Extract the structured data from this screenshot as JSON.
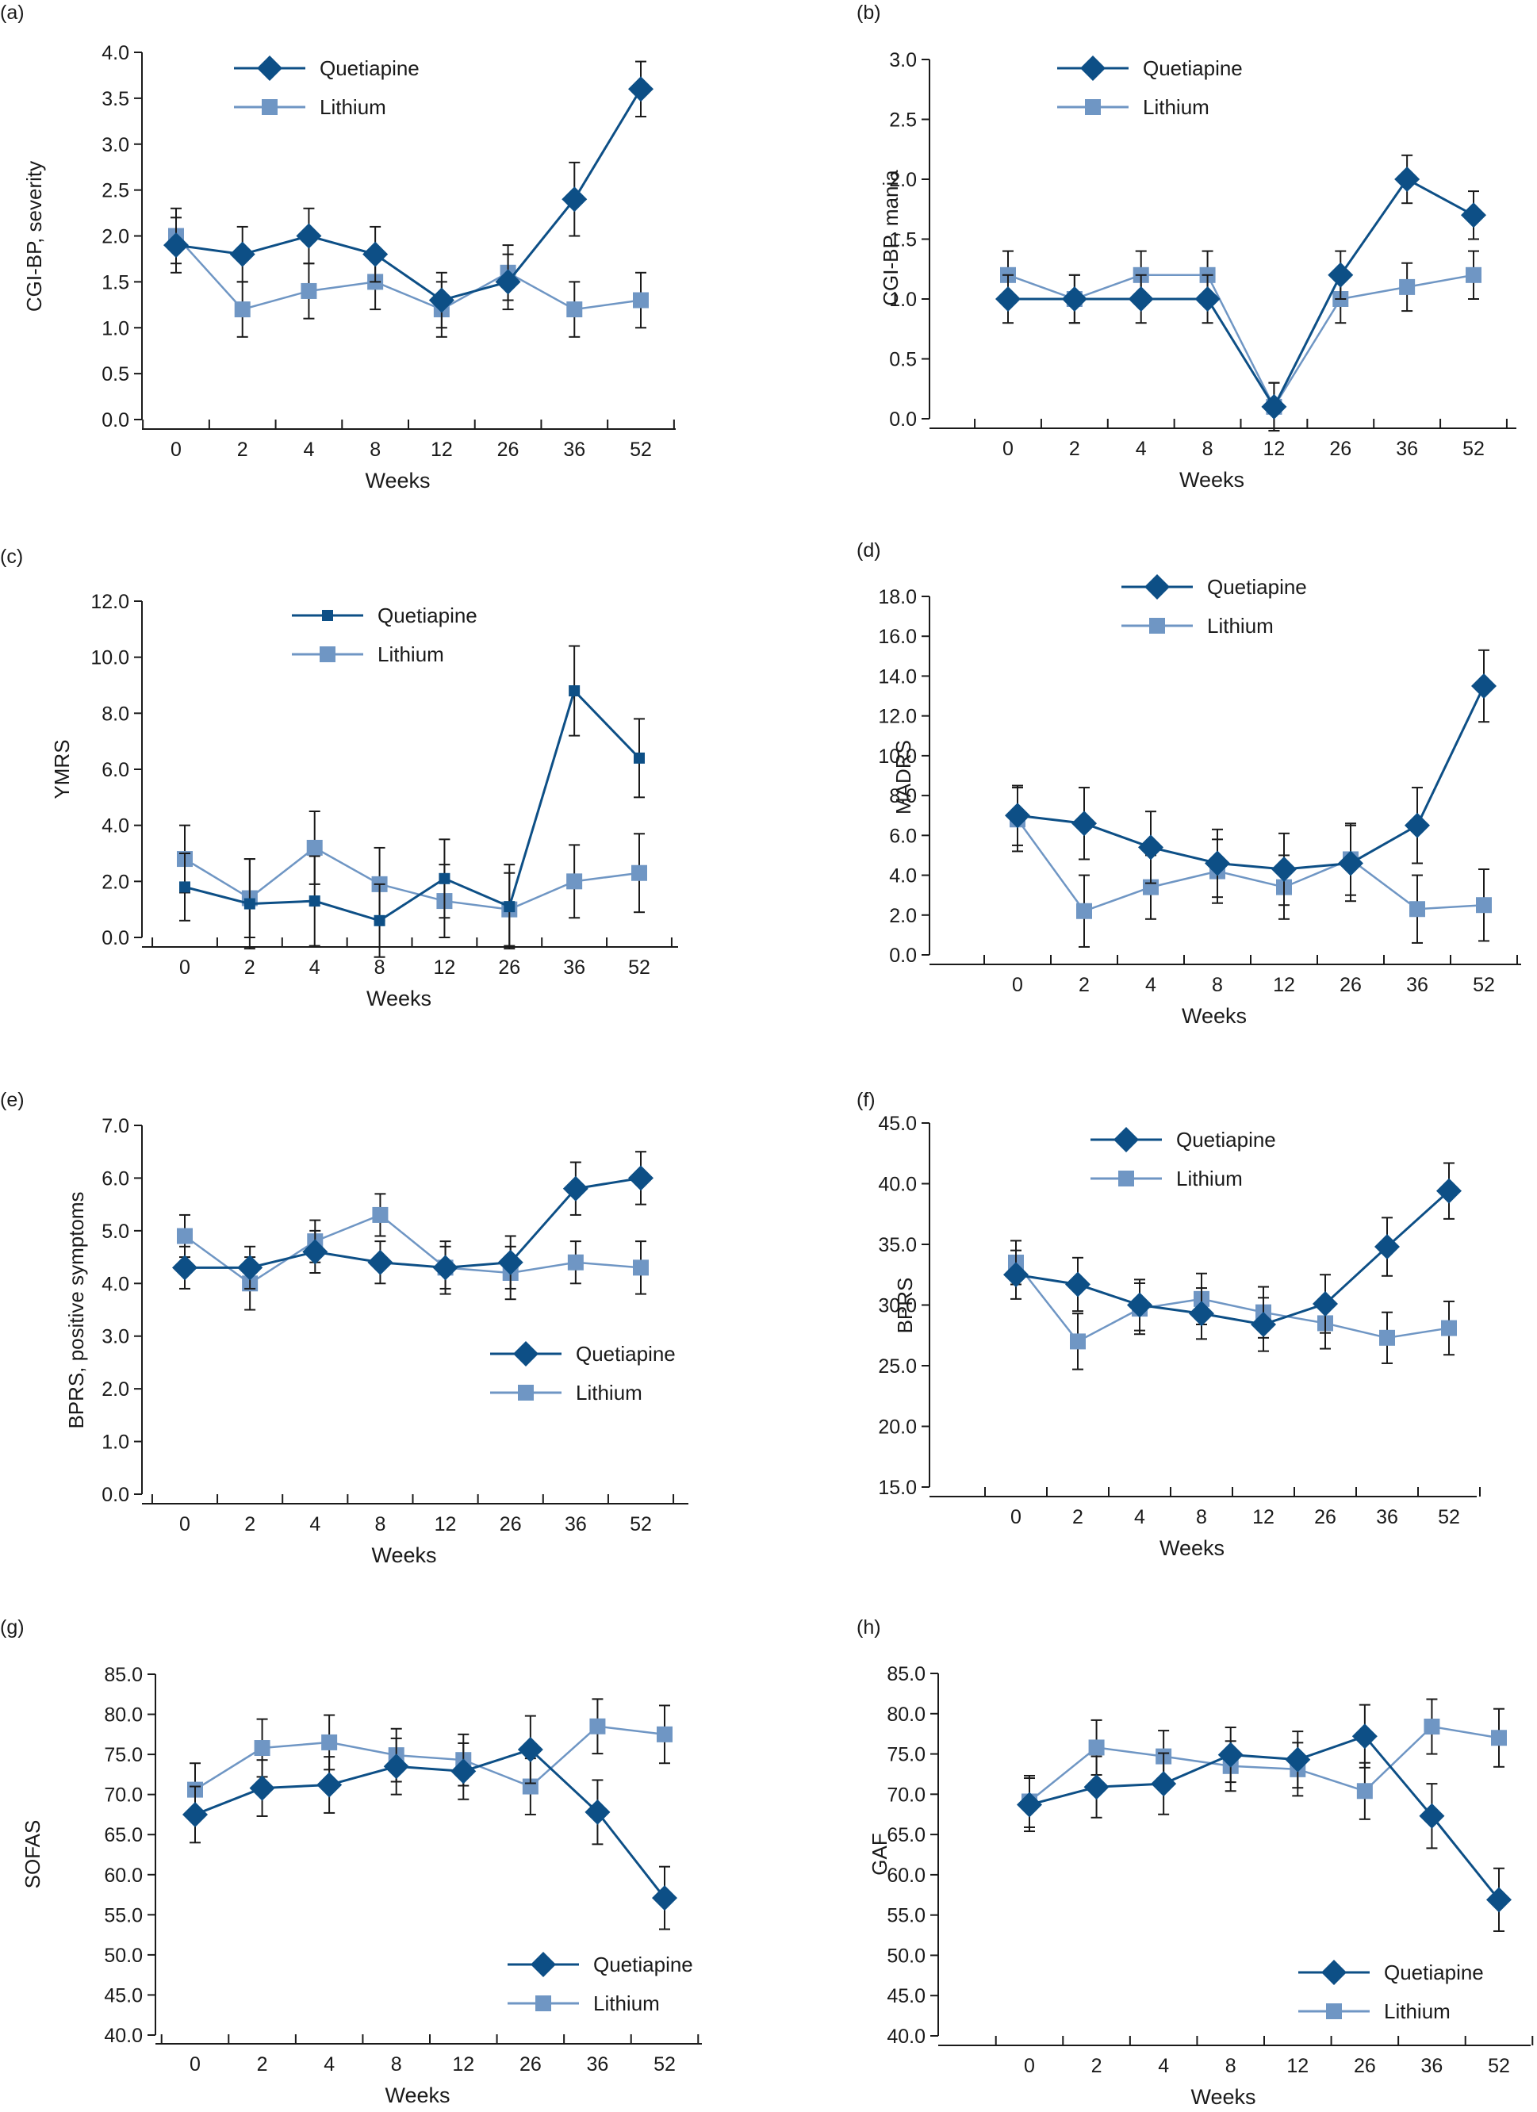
{
  "colors": {
    "quetiapine": "#0d4f86",
    "lithium": "#6f96c4",
    "axis": "#1a1a1a",
    "error_bar": "#1a1a1a"
  },
  "chart_data": [
    {
      "panel_label": "(a)",
      "type": "line",
      "xlabel": "Weeks",
      "ylabel": "CGI-BP, severity",
      "categories": [
        "0",
        "2",
        "4",
        "8",
        "12",
        "26",
        "36",
        "52"
      ],
      "ylim": [
        0,
        4
      ],
      "yticks": [
        "0.0",
        "0.5",
        "1.0",
        "1.5",
        "2.0",
        "2.5",
        "3.0",
        "3.5",
        "4.0"
      ],
      "legend_position": "top-left",
      "quetiapine_marker": "diamond",
      "series": [
        {
          "name": "Quetiapine",
          "values": [
            1.9,
            1.8,
            2.0,
            1.8,
            1.3,
            1.5,
            2.4,
            3.6
          ],
          "errors": [
            0.3,
            0.3,
            0.3,
            0.3,
            0.3,
            0.3,
            0.4,
            0.3
          ]
        },
        {
          "name": "Lithium",
          "values": [
            2.0,
            1.2,
            1.4,
            1.5,
            1.2,
            1.6,
            1.2,
            1.3
          ],
          "errors": [
            0.3,
            0.3,
            0.3,
            0.3,
            0.3,
            0.3,
            0.3,
            0.3
          ]
        }
      ]
    },
    {
      "panel_label": "(b)",
      "type": "line",
      "xlabel": "Weeks",
      "ylabel": "CGI-BP, mania",
      "categories": [
        "0",
        "2",
        "4",
        "8",
        "12",
        "26",
        "36",
        "52"
      ],
      "ylim": [
        0,
        3
      ],
      "yticks": [
        "0.0",
        "0.5",
        "1.0",
        "1.5",
        "2.0",
        "2.5",
        "3.0"
      ],
      "legend_position": "top-left",
      "quetiapine_marker": "diamond",
      "series": [
        {
          "name": "Quetiapine",
          "values": [
            1.0,
            1.0,
            1.0,
            1.0,
            0.1,
            1.2,
            2.0,
            1.7
          ],
          "errors": [
            0.2,
            0.2,
            0.2,
            0.2,
            0.2,
            0.2,
            0.2,
            0.2
          ]
        },
        {
          "name": "Lithium",
          "values": [
            1.2,
            1.0,
            1.2,
            1.2,
            0.1,
            1.0,
            1.1,
            1.2
          ],
          "errors": [
            0.2,
            0.2,
            0.2,
            0.2,
            0.2,
            0.2,
            0.2,
            0.2
          ]
        }
      ]
    },
    {
      "panel_label": "(c)",
      "type": "line",
      "xlabel": "Weeks",
      "ylabel": "YMRS",
      "categories": [
        "0",
        "2",
        "4",
        "8",
        "12",
        "26",
        "36",
        "52"
      ],
      "ylim": [
        0,
        12
      ],
      "yticks": [
        "0.0",
        "2.0",
        "4.0",
        "6.0",
        "8.0",
        "10.0",
        "12.0"
      ],
      "legend_position": "top-center",
      "quetiapine_marker": "square-small",
      "series": [
        {
          "name": "Quetiapine",
          "values": [
            1.8,
            1.2,
            1.3,
            0.6,
            2.1,
            1.1,
            8.8,
            6.4
          ],
          "errors": [
            1.2,
            1.6,
            1.6,
            1.3,
            1.4,
            1.5,
            1.6,
            1.4
          ]
        },
        {
          "name": "Lithium",
          "values": [
            2.8,
            1.4,
            3.2,
            1.9,
            1.3,
            1.0,
            2.0,
            2.3
          ],
          "errors": [
            1.2,
            1.4,
            1.3,
            1.3,
            1.3,
            1.3,
            1.3,
            1.4
          ]
        }
      ]
    },
    {
      "panel_label": "(d)",
      "type": "line",
      "xlabel": "Weeks",
      "ylabel": "MADRS",
      "categories": [
        "0",
        "2",
        "4",
        "8",
        "12",
        "26",
        "36",
        "52"
      ],
      "ylim": [
        0,
        18
      ],
      "yticks": [
        "0.0",
        "2.0",
        "4.0",
        "6.0",
        "8.0",
        "10.0",
        "12.0",
        "14.0",
        "16.0",
        "18.0"
      ],
      "legend_position": "top-center",
      "quetiapine_marker": "diamond",
      "series": [
        {
          "name": "Quetiapine",
          "values": [
            7.0,
            6.6,
            5.4,
            4.6,
            4.3,
            4.6,
            6.5,
            13.5
          ],
          "errors": [
            1.5,
            1.8,
            1.8,
            1.7,
            1.8,
            1.9,
            1.9,
            1.8
          ]
        },
        {
          "name": "Lithium",
          "values": [
            6.8,
            2.2,
            3.4,
            4.2,
            3.4,
            4.8,
            2.3,
            2.5
          ],
          "errors": [
            1.6,
            1.8,
            1.6,
            1.6,
            1.6,
            1.8,
            1.7,
            1.8
          ]
        }
      ]
    },
    {
      "panel_label": "(e)",
      "type": "line",
      "xlabel": "Weeks",
      "ylabel": "BPRS, positive symptoms",
      "categories": [
        "0",
        "2",
        "4",
        "8",
        "12",
        "26",
        "36",
        "52"
      ],
      "ylim": [
        0,
        7
      ],
      "yticks": [
        "0.0",
        "1.0",
        "2.0",
        "3.0",
        "4.0",
        "5.0",
        "6.0",
        "7.0"
      ],
      "legend_position": "bottom-right",
      "quetiapine_marker": "diamond",
      "series": [
        {
          "name": "Quetiapine",
          "values": [
            4.3,
            4.3,
            4.6,
            4.4,
            4.3,
            4.4,
            5.8,
            6.0
          ],
          "errors": [
            0.4,
            0.4,
            0.4,
            0.4,
            0.4,
            0.5,
            0.5,
            0.5
          ]
        },
        {
          "name": "Lithium",
          "values": [
            4.9,
            4.0,
            4.8,
            5.3,
            4.3,
            4.2,
            4.4,
            4.3
          ],
          "errors": [
            0.4,
            0.5,
            0.4,
            0.4,
            0.5,
            0.5,
            0.4,
            0.5
          ]
        }
      ]
    },
    {
      "panel_label": "(f)",
      "type": "line",
      "xlabel": "Weeks",
      "ylabel": "BPRS",
      "categories": [
        "0",
        "2",
        "4",
        "8",
        "12",
        "26",
        "36",
        "52"
      ],
      "ylim": [
        15,
        45
      ],
      "yticks": [
        "15.0",
        "20.0",
        "25.0",
        "30.0",
        "35.0",
        "40.0",
        "45.0"
      ],
      "legend_position": "top-center",
      "quetiapine_marker": "diamond",
      "series": [
        {
          "name": "Quetiapine",
          "values": [
            32.5,
            31.7,
            30.0,
            29.3,
            28.4,
            30.1,
            34.8,
            39.4
          ],
          "errors": [
            2.0,
            2.2,
            2.1,
            2.1,
            2.2,
            2.4,
            2.4,
            2.3
          ]
        },
        {
          "name": "Lithium",
          "values": [
            33.5,
            27.0,
            29.7,
            30.5,
            29.4,
            28.5,
            27.3,
            28.1
          ],
          "errors": [
            1.8,
            2.3,
            2.1,
            2.1,
            2.1,
            2.1,
            2.1,
            2.2
          ]
        }
      ]
    },
    {
      "panel_label": "(g)",
      "type": "line",
      "xlabel": "Weeks",
      "ylabel": "SOFAS",
      "categories": [
        "0",
        "2",
        "4",
        "8",
        "12",
        "26",
        "36",
        "52"
      ],
      "ylim": [
        40,
        85
      ],
      "yticks": [
        "40.0",
        "45.0",
        "50.0",
        "55.0",
        "60.0",
        "65.0",
        "70.0",
        "75.0",
        "80.0",
        "85.0"
      ],
      "legend_position": "bottom-right",
      "quetiapine_marker": "diamond",
      "series": [
        {
          "name": "Quetiapine",
          "values": [
            67.5,
            70.8,
            71.2,
            73.5,
            72.9,
            75.6,
            67.8,
            57.1
          ],
          "errors": [
            3.5,
            3.5,
            3.5,
            3.5,
            3.5,
            4.2,
            4.0,
            3.9
          ]
        },
        {
          "name": "Lithium",
          "values": [
            70.6,
            75.8,
            76.5,
            74.9,
            74.3,
            71.0,
            78.5,
            77.5
          ],
          "errors": [
            3.3,
            3.6,
            3.4,
            3.3,
            3.2,
            3.5,
            3.4,
            3.6
          ]
        }
      ]
    },
    {
      "panel_label": "(h)",
      "type": "line",
      "xlabel": "Weeks",
      "ylabel": "GAF",
      "categories": [
        "0",
        "2",
        "4",
        "8",
        "12",
        "26",
        "36",
        "52"
      ],
      "ylim": [
        40,
        85
      ],
      "yticks": [
        "40.0",
        "45.0",
        "50.0",
        "55.0",
        "60.0",
        "65.0",
        "70.0",
        "75.0",
        "80.0",
        "85.0"
      ],
      "legend_position": "bottom-right",
      "quetiapine_marker": "diamond",
      "series": [
        {
          "name": "Quetiapine",
          "values": [
            68.7,
            70.9,
            71.3,
            74.9,
            74.3,
            77.2,
            67.3,
            56.9
          ],
          "errors": [
            3.3,
            3.8,
            3.8,
            3.4,
            3.5,
            3.9,
            4.0,
            3.9
          ]
        },
        {
          "name": "Lithium",
          "values": [
            69.1,
            75.8,
            74.7,
            73.5,
            73.1,
            70.4,
            78.4,
            77.0
          ],
          "errors": [
            3.2,
            3.4,
            3.2,
            3.1,
            3.3,
            3.5,
            3.4,
            3.6
          ]
        }
      ]
    }
  ]
}
